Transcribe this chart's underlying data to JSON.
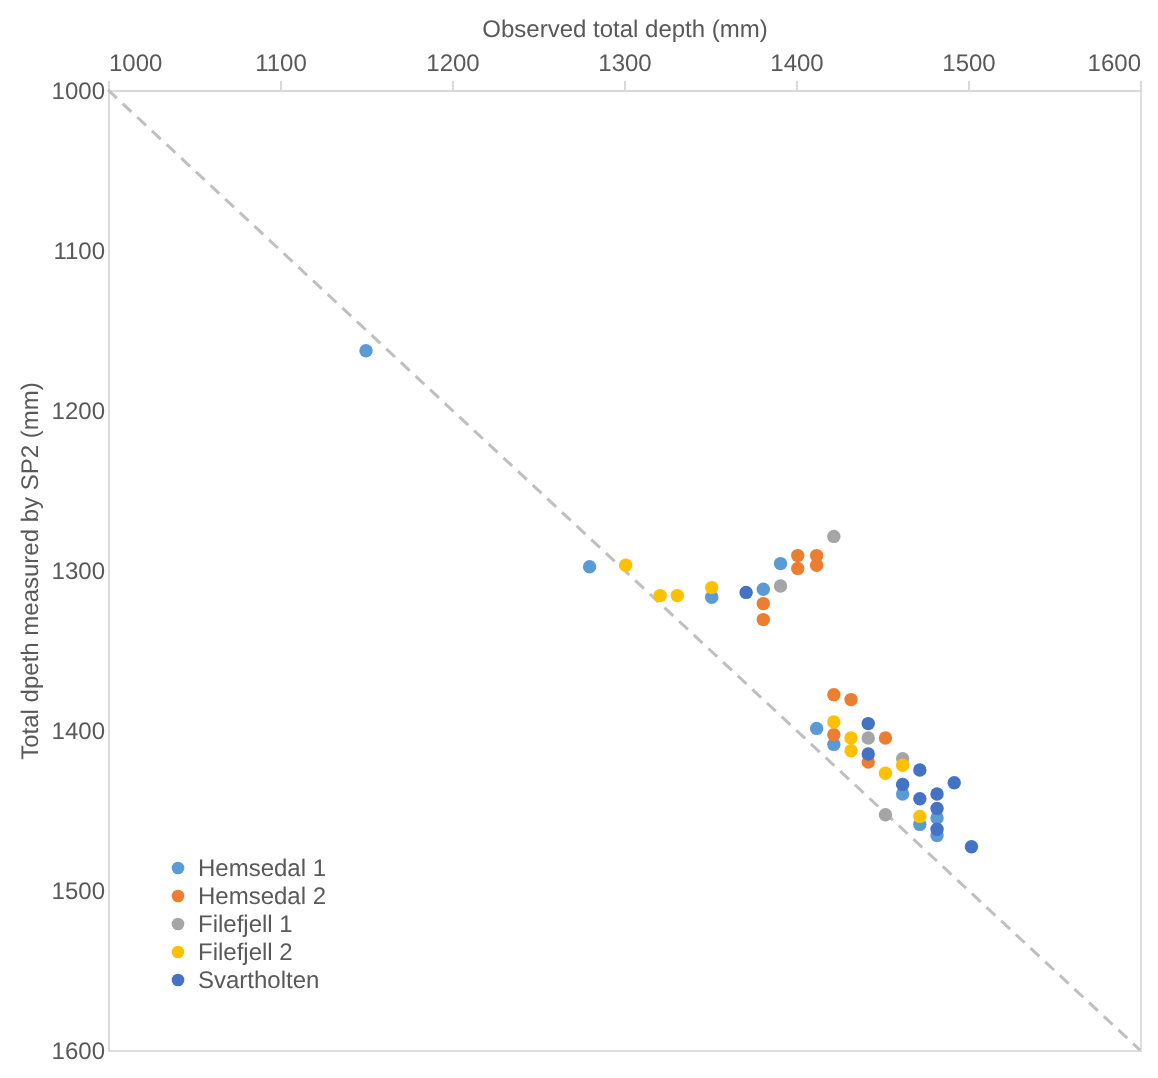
{
  "chart_data": {
    "type": "scatter",
    "xlabel": "Observed total depth (mm)",
    "ylabel": "Total dpeth measured by SP2 (mm)",
    "xlim": [
      1000,
      1600
    ],
    "ylim": [
      1600,
      1000
    ],
    "xticks": [
      1000,
      1100,
      1200,
      1300,
      1400,
      1500,
      1600
    ],
    "yticks": [
      1000,
      1100,
      1200,
      1300,
      1400,
      1500,
      1600
    ],
    "grid": false,
    "legend": "bottom left",
    "marker": "circle",
    "series": [
      {
        "name": "Hemsedal 1",
        "color": "#5b9bd5",
        "x": [
          1150,
          1280,
          1351,
          1381,
          1391,
          1412,
          1422,
          1462,
          1472,
          1482,
          1482
        ],
        "values": [
          1163,
          1298,
          1317,
          1312,
          1296,
          1399,
          1409,
          1440,
          1459,
          1455,
          1466
        ]
      },
      {
        "name": "Hemsedal 2",
        "color": "#ed7d31",
        "x": [
          1401,
          1401,
          1412,
          1412,
          1381,
          1381,
          1422,
          1432,
          1452,
          1422,
          1442
        ],
        "values": [
          1291,
          1299,
          1291,
          1297,
          1321,
          1331,
          1378,
          1381,
          1405,
          1403,
          1420
        ]
      },
      {
        "name": "Filefjell 1",
        "color": "#a5a5a5",
        "x": [
          1422,
          1391,
          1452,
          1442,
          1462
        ],
        "values": [
          1279,
          1310,
          1453,
          1405,
          1418
        ]
      },
      {
        "name": "Filefjell 2",
        "color": "#ffc000",
        "x": [
          1301,
          1321,
          1331,
          1351,
          1422,
          1432,
          1432,
          1452,
          1462,
          1472
        ],
        "values": [
          1297,
          1316,
          1316,
          1311,
          1395,
          1405,
          1413,
          1427,
          1422,
          1454
        ]
      },
      {
        "name": "Svartholten",
        "color": "#4472c4",
        "x": [
          1371,
          1442,
          1442,
          1462,
          1472,
          1482,
          1482,
          1482,
          1492,
          1502,
          1472
        ],
        "values": [
          1314,
          1396,
          1415,
          1434,
          1425,
          1440,
          1449,
          1462,
          1433,
          1473,
          1443
        ]
      },
      {
        "type": "line",
        "color": "#bfbfbf",
        "line_style": "dashed",
        "marker": "none",
        "x": [
          1000,
          1600
        ],
        "values": [
          1000,
          1600
        ]
      }
    ]
  }
}
